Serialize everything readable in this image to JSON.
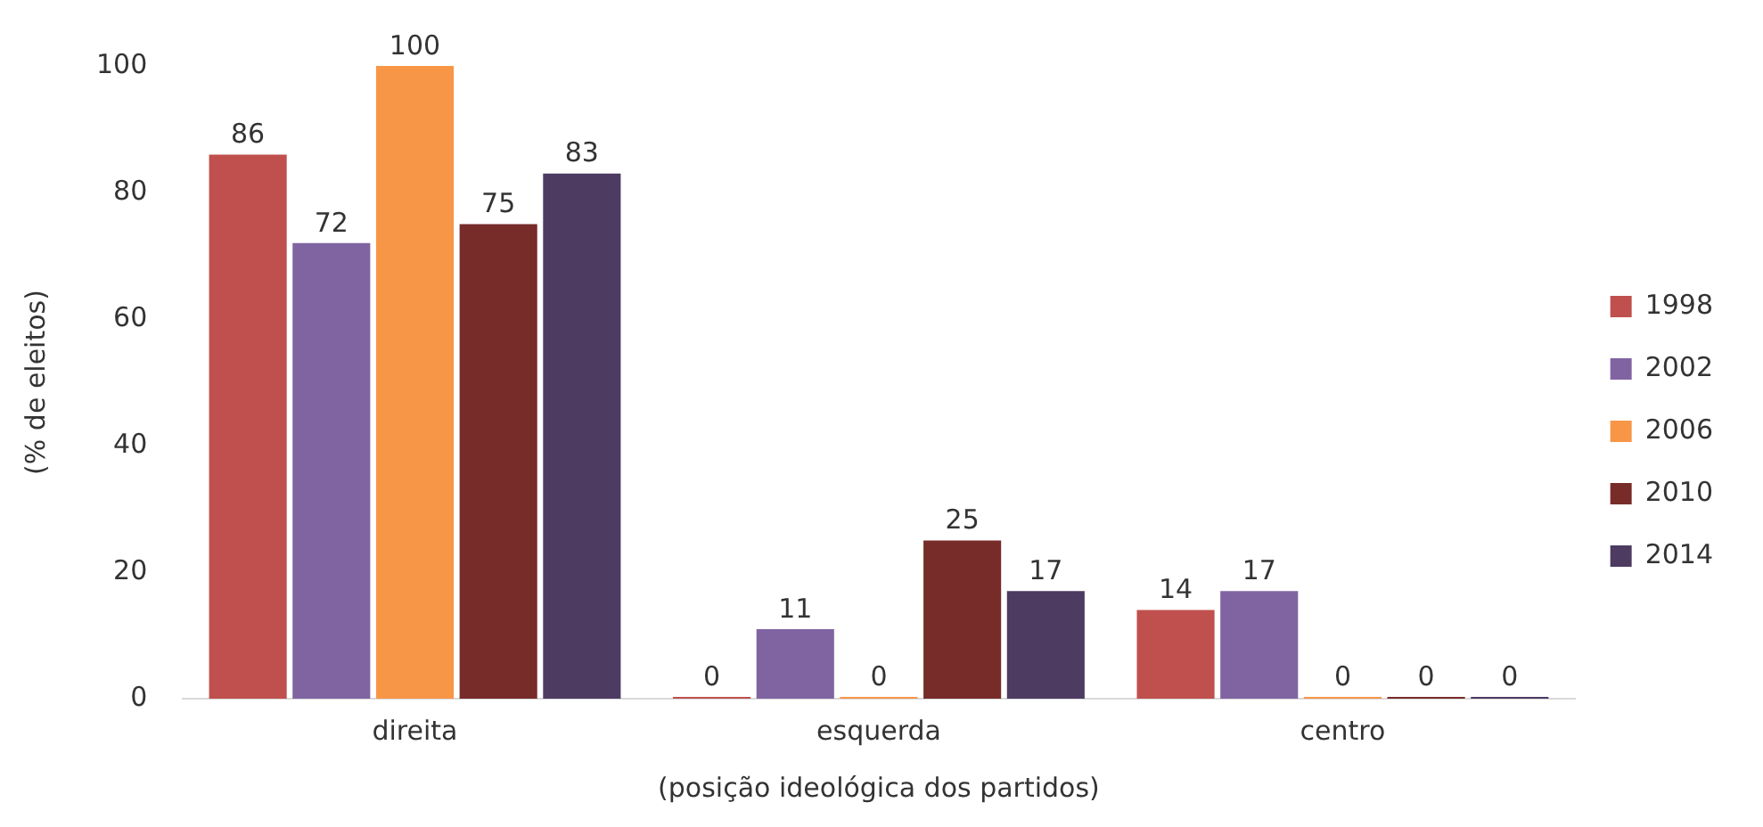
{
  "chart_data": {
    "type": "bar",
    "xlabel": "(posição ideológica dos partidos)",
    "ylabel": "(% de eleitos)",
    "categories": [
      "direita",
      "esquerda",
      "centro"
    ],
    "series": [
      {
        "name": "1998",
        "color": "#c0504d",
        "values": [
          86,
          0,
          14
        ]
      },
      {
        "name": "2002",
        "color": "#8064a2",
        "values": [
          72,
          11,
          17
        ]
      },
      {
        "name": "2006",
        "color": "#f79646",
        "values": [
          100,
          0,
          0
        ]
      },
      {
        "name": "2010",
        "color": "#772c2a",
        "values": [
          75,
          25,
          0
        ]
      },
      {
        "name": "2014",
        "color": "#4d3b62",
        "values": [
          83,
          17,
          0
        ]
      }
    ],
    "ylim": [
      0,
      100
    ],
    "yticks": [
      0,
      20,
      40,
      60,
      80,
      100
    ],
    "grid": false,
    "legend": "right",
    "data_labels": true
  }
}
